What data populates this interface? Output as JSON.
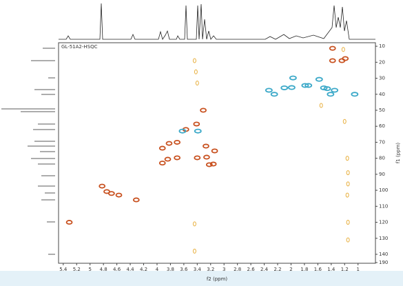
{
  "chart_data": {
    "type": "hsqc",
    "title": "GL-51A2-HSQC",
    "x_label": "f2 (ppm)",
    "y_label": "f1 (ppm)",
    "xlim": [
      5.47,
      0.74
    ],
    "xticks": [
      5.4,
      5.2,
      5.0,
      4.8,
      4.6,
      4.4,
      4.2,
      4.0,
      3.8,
      3.6,
      3.4,
      3.2,
      3.0,
      2.8,
      2.6,
      2.4,
      2.2,
      2.0,
      1.8,
      1.6,
      1.4,
      1.2,
      1.0
    ],
    "ylim": [
      7.8,
      190
    ],
    "yticks": [
      10,
      20,
      30,
      40,
      50,
      60,
      70,
      80,
      90,
      100,
      110,
      120,
      130,
      140,
      190
    ],
    "series": [
      {
        "color": "#c8501e",
        "x": [
          5.31,
          4.82,
          4.75,
          4.68,
          4.57,
          4.31,
          3.92,
          3.92,
          3.82,
          3.7,
          3.7,
          3.84,
          3.57,
          3.41,
          3.31,
          3.27,
          3.14,
          3.26,
          3.22,
          3.16,
          3.4,
          1.38,
          1.38,
          1.24,
          1.19
        ],
        "y": [
          120,
          97.4,
          100.8,
          102,
          103,
          106,
          83,
          73.7,
          70.7,
          70,
          79.7,
          80.6,
          62,
          58.6,
          50,
          72.4,
          75.4,
          79.3,
          84,
          83.6,
          79.7,
          11.3,
          19,
          19,
          17.7
        ]
      },
      {
        "color": "#3aa8c8",
        "x": [
          3.62,
          3.39,
          2.33,
          2.25,
          2.1,
          1.99,
          1.97,
          1.79,
          1.74,
          1.58,
          1.51,
          1.46,
          1.35,
          1.41,
          1.05
        ],
        "y": [
          63,
          63,
          37.5,
          40,
          36,
          35.8,
          29.8,
          34.5,
          34.5,
          30.7,
          36,
          36.5,
          37.5,
          40,
          40
        ]
      },
      {
        "color": "#e8b040",
        "x": [
          3.44,
          3.42,
          3.4,
          1.2,
          1.16,
          1.15,
          1.15,
          1.16,
          1.15,
          1.15,
          3.44,
          3.44,
          1.55,
          1.22
        ],
        "y": [
          19,
          26,
          33,
          57,
          80,
          89,
          96,
          103,
          120,
          131,
          121,
          138,
          47,
          12
        ]
      }
    ]
  }
}
